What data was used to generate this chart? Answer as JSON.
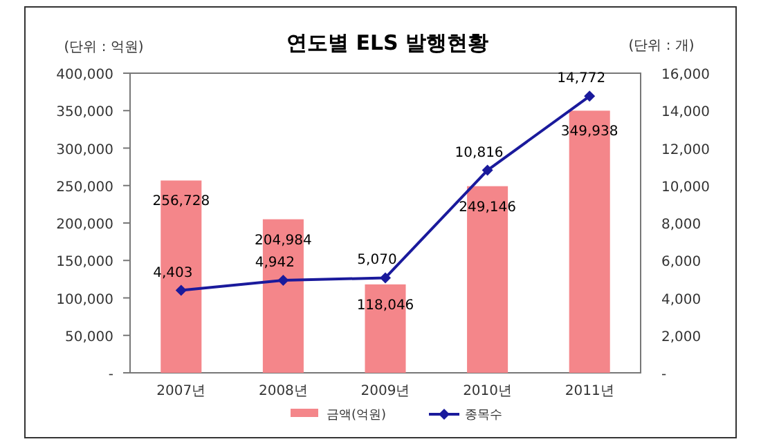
{
  "chart_data": {
    "type": "bar",
    "title": "연도별 ELS 발행현황",
    "ylabel": "(단위 : 억원)",
    "y2label": "(단위 : 개)",
    "categories": [
      "2007년",
      "2008년",
      "2009년",
      "2010년",
      "2011년"
    ],
    "series": [
      {
        "name": "금액(억원)",
        "color": "#f4868a",
        "values": [
          256728,
          204984,
          118046,
          249146,
          349938
        ],
        "value_labels": [
          "256,728",
          "204,984",
          "118,046",
          "249,146",
          "349,938"
        ]
      },
      {
        "name": "종목수",
        "type": "line",
        "axis": "y2",
        "color": "#1a1a9c",
        "marker": "diamond",
        "values": [
          4403,
          4942,
          5070,
          10816,
          14772
        ],
        "value_labels": [
          "4,403",
          "4,942",
          "5,070",
          "10,816",
          "14,772"
        ]
      }
    ],
    "ylim": [
      0,
      400000
    ],
    "yticks": [
      {
        "value": 0,
        "label": "-"
      },
      {
        "value": 50000,
        "label": "50,000"
      },
      {
        "value": 100000,
        "label": "100,000"
      },
      {
        "value": 150000,
        "label": "150,000"
      },
      {
        "value": 200000,
        "label": "200,000"
      },
      {
        "value": 250000,
        "label": "250,000"
      },
      {
        "value": 300000,
        "label": "300,000"
      },
      {
        "value": 350000,
        "label": "350,000"
      },
      {
        "value": 400000,
        "label": "400,000"
      }
    ],
    "y2lim": [
      0,
      16000
    ],
    "y2ticks": [
      {
        "value": 0,
        "label": "-"
      },
      {
        "value": 2000,
        "label": "2,000"
      },
      {
        "value": 4000,
        "label": "4,000"
      },
      {
        "value": 6000,
        "label": "6,000"
      },
      {
        "value": 8000,
        "label": "8,000"
      },
      {
        "value": 10000,
        "label": "10,000"
      },
      {
        "value": 12000,
        "label": "12,000"
      },
      {
        "value": 14000,
        "label": "14,000"
      },
      {
        "value": 16000,
        "label": "16,000"
      }
    ],
    "legend": "bottom"
  }
}
